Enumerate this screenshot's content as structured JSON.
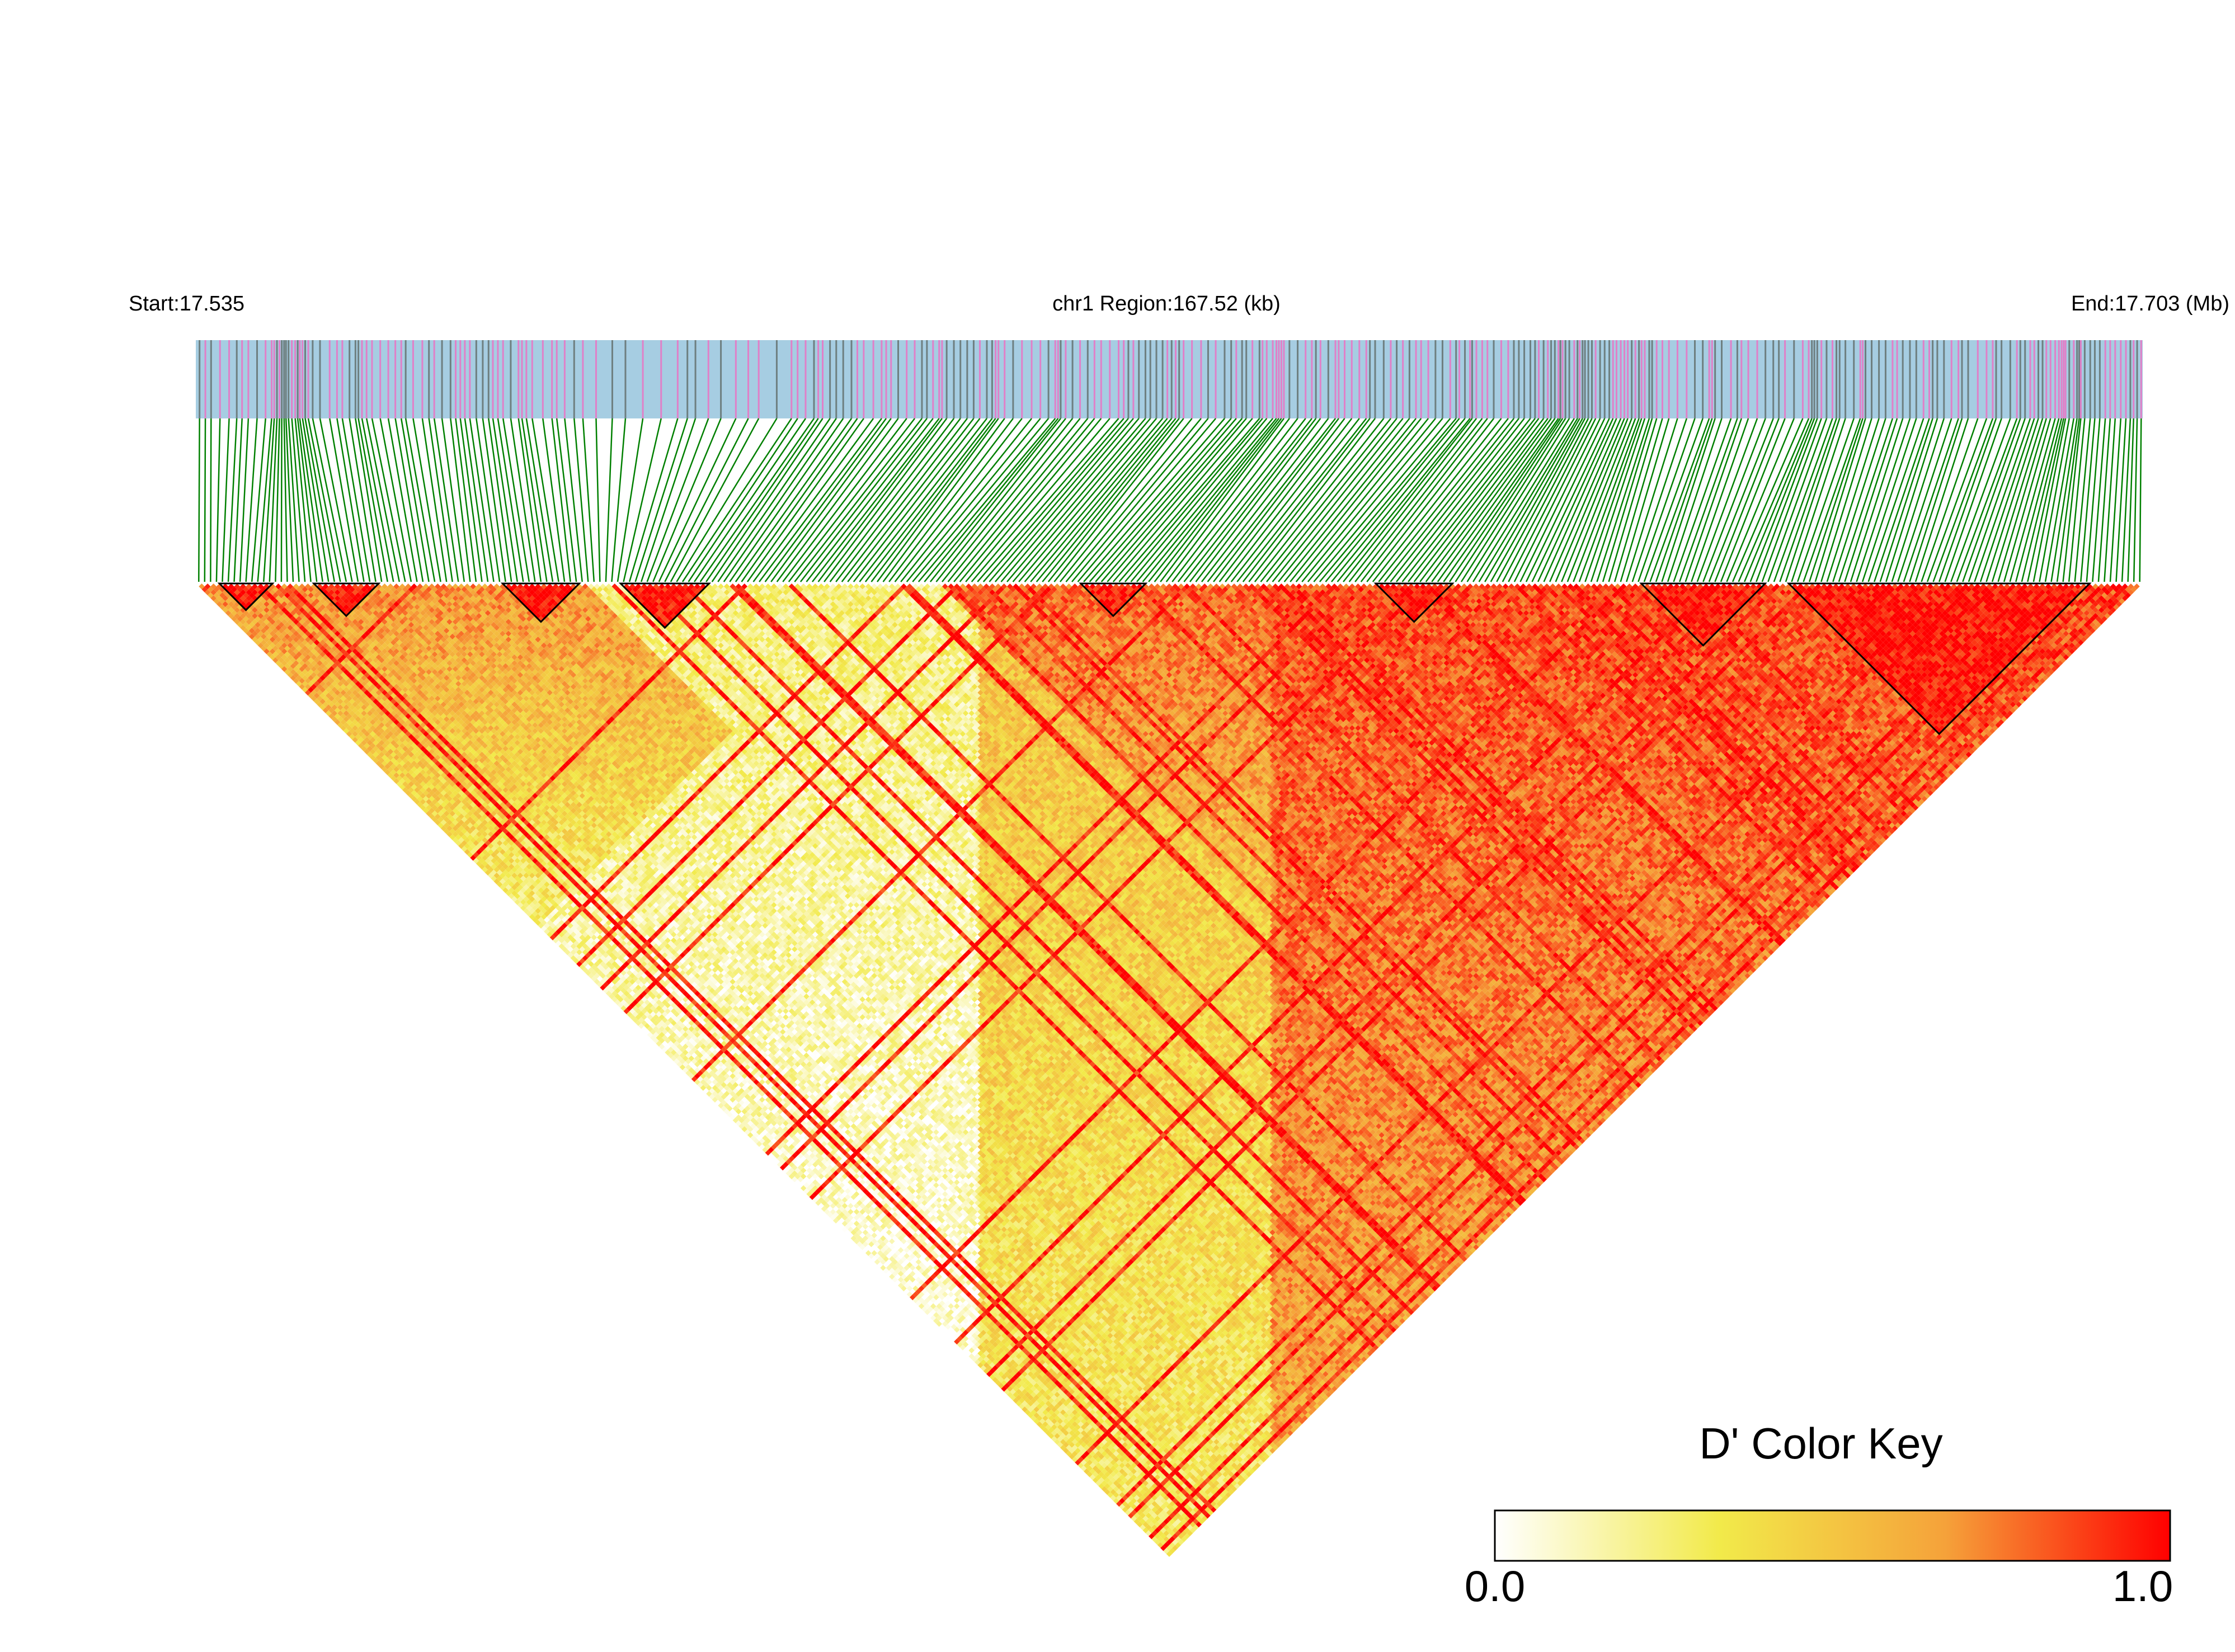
{
  "header": {
    "start_label": "Start:17.535",
    "region_label": "chr1 Region:167.52 (kb)",
    "end_label": "End:17.703 (Mb)"
  },
  "color_key": {
    "title": "D' Color Key",
    "min_label": "0.0",
    "max_label": "1.0",
    "stops": [
      "#ffffff",
      "#f2ea4a",
      "#f5a23a",
      "#ff0000"
    ]
  },
  "colors": {
    "track_background": "#a6cde2",
    "snp_variant": "#e080c8",
    "snp_gene": "#6e7f80",
    "connector": "#008000",
    "high_ld": "#ff1a00"
  },
  "chart_data": {
    "type": "heatmap",
    "title": "",
    "xlabel": "",
    "ylabel": "",
    "chromosome": "chr1",
    "region_kb": 167.52,
    "start_mb": 17.535,
    "end_mb": 17.703,
    "snp_count": 330,
    "value_range": [
      0.0,
      1.0
    ],
    "blocks": [
      [
        4,
        12
      ],
      [
        20,
        30
      ],
      [
        52,
        64
      ],
      [
        72,
        86
      ],
      [
        150,
        160
      ],
      [
        200,
        212
      ],
      [
        245,
        265
      ],
      [
        270,
        320
      ]
    ]
  }
}
